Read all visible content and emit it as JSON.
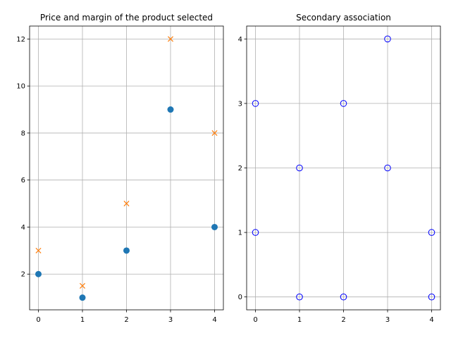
{
  "chart_data": [
    {
      "type": "scatter",
      "title": "Price and margin of the product selected",
      "xlabel": "",
      "ylabel": "",
      "xlim": [
        -0.2,
        4.2
      ],
      "ylim": [
        0.48,
        12.55
      ],
      "xticks": [
        0,
        1,
        2,
        3,
        4
      ],
      "yticks": [
        2,
        4,
        6,
        8,
        10,
        12
      ],
      "grid": true,
      "series": [
        {
          "marker": "circle-filled",
          "color": "#1f77b4",
          "x": [
            0,
            1,
            2,
            3,
            4
          ],
          "y": [
            2,
            1,
            3,
            9,
            4
          ]
        },
        {
          "marker": "x",
          "color": "#ff7f0e",
          "x": [
            0,
            1,
            2,
            3,
            4
          ],
          "y": [
            3,
            1.5,
            5,
            12,
            8
          ]
        }
      ]
    },
    {
      "type": "scatter",
      "title": "Secondary association",
      "xlabel": "",
      "ylabel": "",
      "xlim": [
        -0.2,
        4.2
      ],
      "ylim": [
        -0.2,
        4.2
      ],
      "xticks": [
        0,
        1,
        2,
        3,
        4
      ],
      "yticks": [
        0,
        1,
        2,
        3,
        4
      ],
      "grid": true,
      "series": [
        {
          "marker": "circle-open",
          "color": "#0000ff",
          "x": [
            0,
            0,
            1,
            1,
            2,
            2,
            3,
            3,
            4,
            4
          ],
          "y": [
            3,
            1,
            2,
            0,
            3,
            0,
            4,
            2,
            1,
            0
          ]
        }
      ]
    }
  ]
}
